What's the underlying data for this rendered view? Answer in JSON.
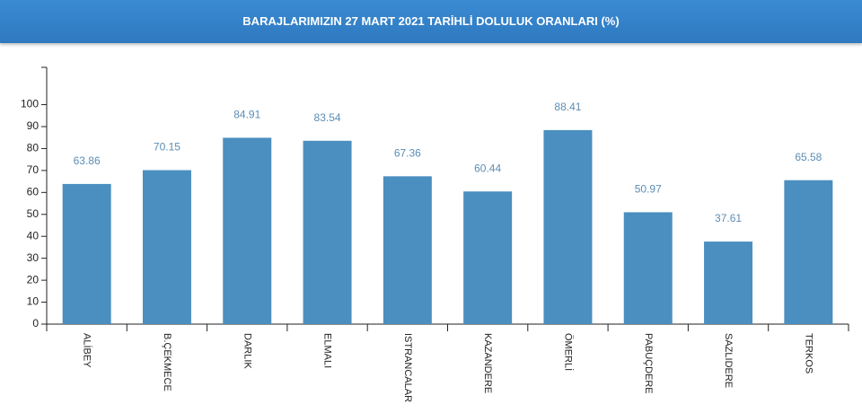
{
  "chart_data": {
    "type": "bar",
    "title": "BARAJLARIMIZIN 27 MART 2021 TARİHLİ DOLULUK ORANLARI (%)",
    "categories": [
      "ALİBEY",
      "B.ÇEKMECE",
      "DARLIK",
      "ELMALI",
      "ISTRANCALAR",
      "KAZANDERE",
      "ÖMERLİ",
      "PABUÇDERE",
      "SAZLIDERE",
      "TERKOS"
    ],
    "values": [
      63.86,
      70.15,
      84.91,
      83.54,
      67.36,
      60.44,
      88.41,
      50.97,
      37.61,
      65.58
    ],
    "color": "#4a8fc0",
    "ylim": [
      0,
      117
    ],
    "yticks": [
      0,
      10,
      20,
      30,
      40,
      50,
      60,
      70,
      80,
      90,
      100
    ]
  }
}
